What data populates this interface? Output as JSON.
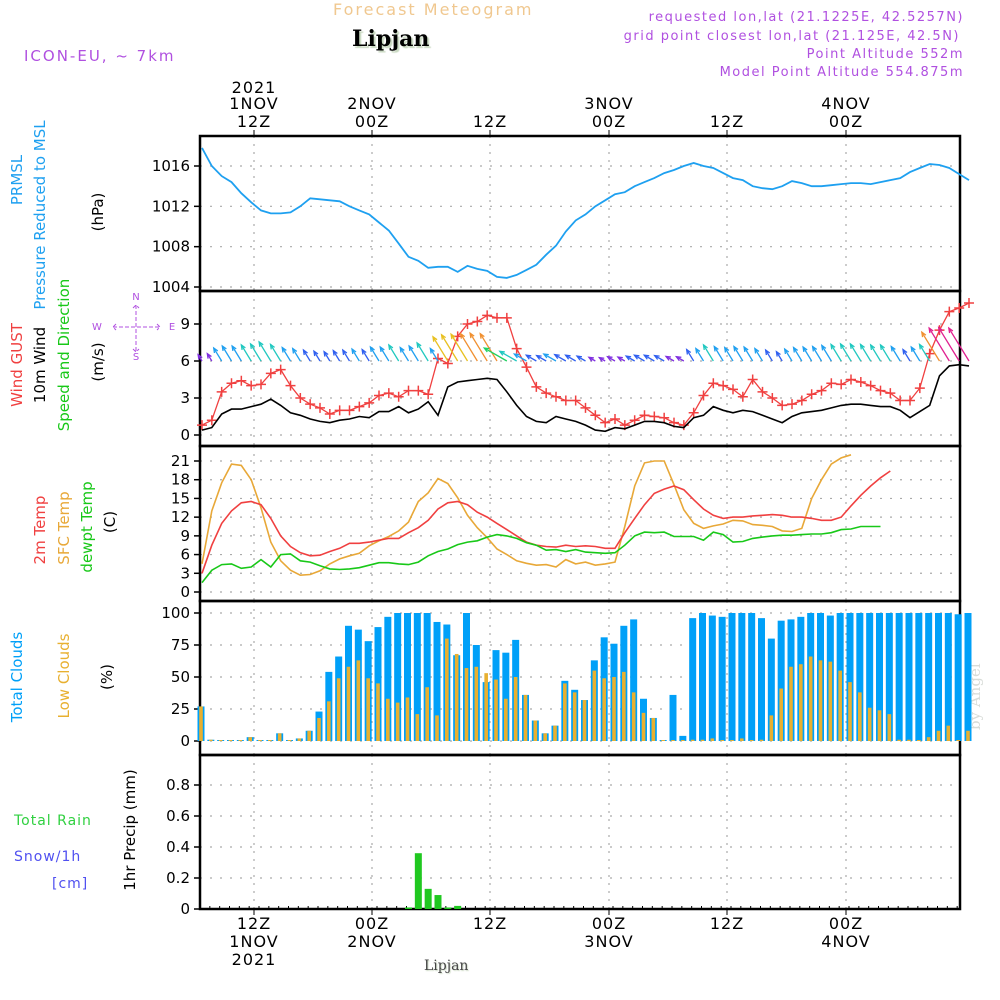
{
  "header": {
    "title": "Forecast Meteogram",
    "location": "Lipjan",
    "model": "ICON-EU, ~ 7km",
    "requested": "requested lon,lat (21.1225E, 42.5257N)",
    "gridpoint": "grid point closest lon,lat (21.125E, 42.5N)",
    "altitude": "Point Altitude 552m",
    "model_altitude": "Model Point Altitude 554.875m",
    "footer_location": "Lipjan",
    "watermark": "by Angel"
  },
  "colors": {
    "pressure": "#1ea0f0",
    "gust": "#f04040",
    "wind": "#000000",
    "t2m": "#f04040",
    "tsfc": "#e8a838",
    "dewpt": "#18c818",
    "total_clouds": "#00a0f8",
    "low_clouds": "#e8b030",
    "rain": "#20c820",
    "snow": "#5050f0",
    "meta_text": "#b050e0",
    "title_text": "#f0c890"
  },
  "chart_data": [
    {
      "type": "line",
      "panel": "pressure",
      "labels": [
        "PRMSL",
        "Pressure Reduced to MSL",
        "(hPa)"
      ],
      "ylim": [
        1004,
        1018
      ],
      "yticks": [
        1004,
        1008,
        1012,
        1016
      ],
      "grid": true,
      "series": [
        {
          "name": "PRMSL",
          "values": [
            1017.8,
            1016.0,
            1015.0,
            1014.4,
            1013.3,
            1012.4,
            1011.6,
            1011.3,
            1011.3,
            1011.4,
            1012.0,
            1012.8,
            1012.7,
            1012.6,
            1012.5,
            1012.0,
            1011.6,
            1011.2,
            1010.4,
            1009.6,
            1008.3,
            1007.0,
            1006.6,
            1005.9,
            1006.0,
            1006.0,
            1005.5,
            1006.1,
            1005.8,
            1005.6,
            1005.0,
            1004.9,
            1005.2,
            1005.7,
            1006.2,
            1007.2,
            1008.1,
            1009.5,
            1010.6,
            1011.2,
            1012.0,
            1012.6,
            1013.2,
            1013.4,
            1014.0,
            1014.4,
            1014.8,
            1015.3,
            1015.6,
            1016.0,
            1016.3,
            1016.0,
            1015.8,
            1015.3,
            1014.8,
            1014.6,
            1014.0,
            1013.8,
            1013.7,
            1014.0,
            1014.5,
            1014.3,
            1014.0,
            1014.0,
            1014.1,
            1014.2,
            1014.3,
            1014.3,
            1014.2,
            1014.4,
            1014.6,
            1014.8,
            1015.4,
            1015.8,
            1016.2,
            1016.1,
            1015.8,
            1015.2,
            1014.6
          ]
        }
      ]
    },
    {
      "type": "line",
      "panel": "wind",
      "labels": [
        "Wind GUST",
        "10m Wind",
        "Speed and Direction",
        "(m/s)"
      ],
      "compass": {
        "N": "N",
        "S": "S",
        "E": "E",
        "W": "W"
      },
      "ylim": [
        -0.5,
        11.5
      ],
      "yticks": [
        0,
        3,
        6,
        9
      ],
      "grid": true,
      "series": [
        {
          "name": "Wind GUST",
          "values": [
            0.8,
            1.2,
            3.5,
            4.2,
            4.4,
            4.0,
            4.1,
            5.0,
            5.3,
            4.0,
            3.0,
            2.5,
            2.2,
            1.7,
            2.0,
            2.0,
            2.3,
            2.6,
            3.2,
            3.4,
            3.1,
            3.6,
            3.6,
            3.3,
            6.2,
            5.8,
            8.0,
            9.0,
            9.2,
            9.7,
            9.5,
            9.5,
            7.0,
            5.5,
            3.9,
            3.4,
            3.1,
            2.8,
            2.8,
            2.2,
            1.6,
            1.0,
            1.3,
            0.8,
            1.2,
            1.6,
            1.5,
            1.4,
            1.0,
            0.8,
            1.8,
            3.2,
            4.2,
            4.0,
            3.7,
            3.1,
            4.5,
            3.5,
            3.0,
            2.4,
            2.5,
            2.8,
            3.3,
            3.6,
            4.2,
            4.1,
            4.5,
            4.3,
            4.0,
            3.6,
            3.4,
            2.8,
            2.8,
            3.8,
            6.6,
            8.5,
            10.0,
            10.3,
            10.7
          ]
        },
        {
          "name": "10m Wind",
          "values": [
            0.4,
            0.6,
            1.7,
            2.1,
            2.1,
            2.3,
            2.5,
            2.9,
            2.4,
            1.8,
            1.6,
            1.3,
            1.1,
            1.0,
            1.2,
            1.3,
            1.5,
            1.4,
            1.9,
            1.9,
            2.3,
            1.8,
            2.1,
            2.7,
            1.6,
            3.9,
            4.3,
            4.4,
            4.5,
            4.6,
            4.5,
            3.5,
            2.4,
            1.5,
            1.1,
            1.0,
            1.5,
            1.3,
            1.1,
            0.8,
            0.4,
            0.3,
            0.6,
            0.5,
            0.8,
            1.1,
            1.1,
            1.0,
            0.7,
            0.6,
            1.4,
            1.6,
            2.3,
            2.0,
            1.8,
            2.0,
            1.9,
            1.6,
            1.3,
            1.0,
            1.5,
            1.8,
            1.9,
            2.0,
            2.2,
            2.4,
            2.5,
            2.5,
            2.4,
            2.3,
            2.3,
            2.0,
            1.4,
            1.9,
            2.4,
            4.8,
            5.6,
            5.7,
            5.6
          ]
        }
      ],
      "wind_arrows": "direction barbs along 6 m/s line, coloured by speed (violet=calm, blue, cyan, green, yellow, orange, magenta=strong)"
    },
    {
      "type": "line",
      "panel": "temperature",
      "labels": [
        "2m Temp",
        "SFC Temp",
        "dewpt Temp",
        "(C)"
      ],
      "ylim": [
        0,
        23
      ],
      "yticks": [
        0,
        3,
        6,
        9,
        12,
        15,
        18,
        21
      ],
      "grid": true,
      "series": [
        {
          "name": "2m Temp",
          "values": [
            3.0,
            7.5,
            11.0,
            13.0,
            14.3,
            14.5,
            14.0,
            11.8,
            9.0,
            7.3,
            6.3,
            5.8,
            5.9,
            6.5,
            7.0,
            7.8,
            7.8,
            8.0,
            8.3,
            8.6,
            8.6,
            9.5,
            10.3,
            11.5,
            13.3,
            14.3,
            14.5,
            14.0,
            12.8,
            12.0,
            11.0,
            10.0,
            9.0,
            8.0,
            7.5,
            7.3,
            7.2,
            7.5,
            7.3,
            7.4,
            7.3,
            7.0,
            7.0,
            9.5,
            11.8,
            14.0,
            15.8,
            16.5,
            17.0,
            16.4,
            14.8,
            13.3,
            12.3,
            11.8,
            12.0,
            12.0,
            12.2,
            12.3,
            12.4,
            12.3,
            12.0,
            12.0,
            11.8,
            11.5,
            11.5,
            12.0,
            13.8,
            15.5,
            17.0,
            18.3,
            19.4
          ]
        },
        {
          "name": "SFC Temp",
          "values": [
            4.5,
            13.0,
            17.5,
            20.5,
            20.3,
            18.0,
            13.5,
            8.0,
            5.0,
            3.5,
            2.7,
            2.8,
            3.4,
            4.5,
            5.3,
            5.8,
            6.2,
            7.4,
            8.2,
            8.9,
            9.8,
            11.2,
            14.5,
            15.9,
            18.2,
            17.4,
            15.1,
            12.3,
            10.3,
            8.7,
            6.9,
            6.0,
            5.0,
            4.6,
            4.3,
            4.4,
            4.0,
            5.2,
            4.5,
            4.8,
            4.3,
            4.5,
            4.8,
            10.5,
            17.0,
            20.7,
            21.0,
            21.0,
            17.2,
            13.2,
            11.0,
            10.2,
            10.6,
            10.9,
            11.5,
            11.4,
            10.8,
            10.7,
            10.5,
            9.8,
            9.7,
            10.2,
            15.0,
            18.0,
            20.5,
            21.5,
            22.0
          ]
        },
        {
          "name": "dewpt Temp",
          "values": [
            1.5,
            3.5,
            4.4,
            4.5,
            3.8,
            4.0,
            5.2,
            4.0,
            6.0,
            6.1,
            5.0,
            4.8,
            4.2,
            3.7,
            3.6,
            3.7,
            3.9,
            4.3,
            4.7,
            4.7,
            4.5,
            4.4,
            4.8,
            5.8,
            6.5,
            6.9,
            7.6,
            8.0,
            8.2,
            8.8,
            9.2,
            9.0,
            8.6,
            7.9,
            7.5,
            6.7,
            6.8,
            6.5,
            6.8,
            6.4,
            6.3,
            6.2,
            6.3,
            7.5,
            9.0,
            9.6,
            9.5,
            9.6,
            8.9,
            8.9,
            8.9,
            8.3,
            9.6,
            9.2,
            8.0,
            8.1,
            8.6,
            8.8,
            9.0,
            9.1,
            9.1,
            9.2,
            9.3,
            9.3,
            9.5,
            10.0,
            10.1,
            10.5,
            10.5,
            10.5
          ]
        }
      ]
    },
    {
      "type": "bar",
      "panel": "clouds",
      "labels": [
        "Total Clouds",
        "Low Clouds",
        "(%)"
      ],
      "ylim": [
        -8,
        105
      ],
      "yticks": [
        0,
        25,
        50,
        75,
        100
      ],
      "grid": true,
      "series": [
        {
          "name": "Total Clouds",
          "values": [
            27,
            1,
            0,
            0,
            0,
            3,
            0,
            0,
            6,
            0,
            2,
            8,
            23,
            54,
            66,
            90,
            87,
            78,
            89,
            97,
            100,
            100,
            100,
            100,
            93,
            91,
            67,
            100,
            75,
            46,
            71,
            69,
            79,
            36,
            16,
            6,
            12,
            47,
            40,
            32,
            63,
            81,
            76,
            90,
            95,
            33,
            18,
            0,
            36,
            4,
            96,
            100,
            98,
            97,
            100,
            100,
            100,
            96,
            80,
            94,
            95,
            97,
            100,
            100,
            98,
            100,
            100,
            100,
            100,
            100,
            100,
            100,
            100,
            100,
            100,
            100,
            100,
            99,
            100
          ]
        },
        {
          "name": "Low Clouds",
          "values": [
            27,
            1,
            0,
            0,
            0,
            3,
            0,
            0,
            6,
            0,
            2,
            8,
            18,
            31,
            49,
            58,
            63,
            49,
            45,
            33,
            30,
            34,
            21,
            42,
            20,
            80,
            68,
            57,
            58,
            53,
            48,
            33,
            50,
            36,
            16,
            6,
            12,
            45,
            38,
            32,
            55,
            49,
            50,
            54,
            38,
            22,
            18,
            0,
            0,
            0,
            1,
            1,
            2,
            0,
            0,
            2,
            0,
            1,
            20,
            41,
            58,
            60,
            66,
            63,
            62,
            55,
            46,
            38,
            26,
            24,
            21,
            1,
            1,
            0,
            3,
            8,
            12,
            0,
            8
          ]
        }
      ]
    },
    {
      "type": "bar",
      "panel": "precip",
      "labels": [
        "Total Rain",
        "Snow/1h",
        "[cm]",
        "1hr Precip (mm)"
      ],
      "ylim": [
        0,
        1.0
      ],
      "yticks": [
        "0",
        "0.2",
        "0.4",
        "0.6",
        "0.8"
      ],
      "grid": true,
      "series": [
        {
          "name": "Total Rain",
          "values": [
            0,
            0,
            0,
            0,
            0,
            0,
            0,
            0,
            0,
            0,
            0,
            0,
            0,
            0,
            0,
            0,
            0,
            0,
            0,
            0,
            0,
            0.01,
            0.36,
            0.13,
            0.09,
            0.01,
            0.02,
            0.0,
            0,
            0,
            0,
            0,
            0,
            0,
            0,
            0,
            0,
            0,
            0,
            0,
            0,
            0,
            0,
            0,
            0,
            0,
            0,
            0,
            0,
            0,
            0,
            0,
            0,
            0,
            0,
            0,
            0,
            0,
            0,
            0,
            0,
            0,
            0,
            0,
            0,
            0,
            0,
            0,
            0,
            0,
            0,
            0,
            0,
            0,
            0,
            0,
            0,
            0
          ]
        },
        {
          "name": "Snow/1h",
          "values": []
        }
      ]
    }
  ],
  "time_axis": {
    "top_ticks": [
      {
        "l1": "2021",
        "l2": "1NOV",
        "l3": "12Z"
      },
      {
        "l1": "",
        "l2": "2NOV",
        "l3": "00Z"
      },
      {
        "l1": "",
        "l2": "",
        "l3": "12Z"
      },
      {
        "l1": "",
        "l2": "3NOV",
        "l3": "00Z"
      },
      {
        "l1": "",
        "l2": "",
        "l3": "12Z"
      },
      {
        "l1": "",
        "l2": "4NOV",
        "l3": "00Z"
      }
    ],
    "bottom_ticks": [
      {
        "l1": "12Z",
        "l2": "1NOV",
        "l3": "2021"
      },
      {
        "l1": "00Z",
        "l2": "2NOV",
        "l3": ""
      },
      {
        "l1": "12Z",
        "l2": "",
        "l3": ""
      },
      {
        "l1": "00Z",
        "l2": "3NOV",
        "l3": ""
      },
      {
        "l1": "12Z",
        "l2": "",
        "l3": ""
      },
      {
        "l1": "00Z",
        "l2": "4NOV",
        "l3": ""
      }
    ]
  }
}
